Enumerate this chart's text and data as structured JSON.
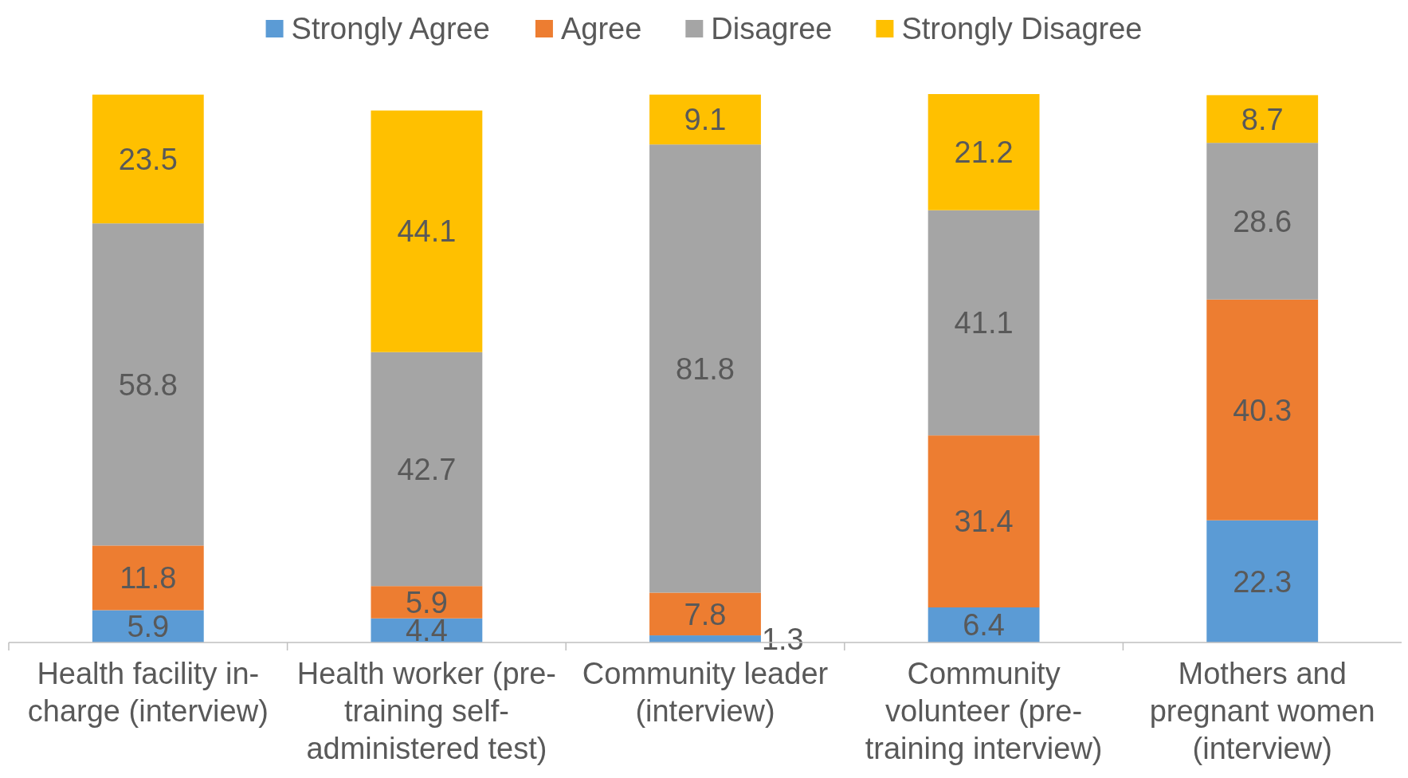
{
  "chart_data": {
    "type": "bar",
    "stacked": true,
    "data_labels": true,
    "legend": "top",
    "categories": [
      "Health facility in-charge (interview)",
      "Health worker (pre-training self-administered test)",
      "Community leader (interview)",
      "Community volunteer (pre-training interview)",
      "Mothers and pregnant women (interview)"
    ],
    "series": [
      {
        "name": "Strongly Agree",
        "color": "#5b9bd5",
        "values": [
          5.9,
          4.4,
          1.3,
          6.4,
          22.3
        ]
      },
      {
        "name": "Agree",
        "color": "#ed7d31",
        "values": [
          11.8,
          5.9,
          7.8,
          31.4,
          40.3
        ]
      },
      {
        "name": "Disagree",
        "color": "#a5a5a5",
        "values": [
          58.8,
          42.7,
          81.8,
          41.1,
          28.6
        ]
      },
      {
        "name": "Strongly Disagree",
        "color": "#ffc000",
        "values": [
          23.5,
          44.1,
          9.1,
          21.2,
          8.7
        ]
      }
    ]
  }
}
